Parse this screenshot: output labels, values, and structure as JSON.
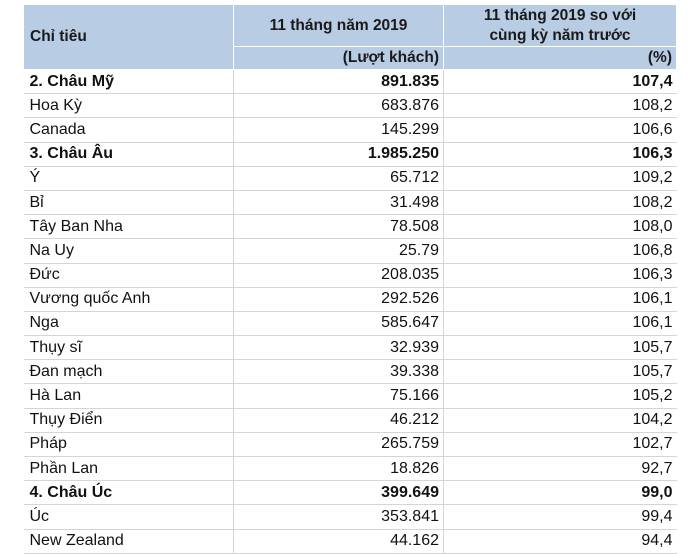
{
  "chart_data": {
    "type": "table",
    "header": {
      "col1": "Chỉ tiêu",
      "col2": "11 tháng năm 2019",
      "col3_line1": "11 tháng 2019 so với",
      "col3_line2": "cùng kỳ năm trước",
      "unit2": "(Lượt khách)",
      "unit3": "(%)"
    },
    "rows": [
      {
        "name": "2. Châu Mỹ",
        "visitors": "891.835",
        "pct": "107,4",
        "bold": true
      },
      {
        "name": "Hoa Kỳ",
        "visitors": "683.876",
        "pct": "108,2"
      },
      {
        "name": "Canada",
        "visitors": "145.299",
        "pct": "106,6"
      },
      {
        "name": "3. Châu Âu",
        "visitors": "1.985.250",
        "pct": "106,3",
        "bold": true
      },
      {
        "name": "Ý",
        "visitors": "65.712",
        "pct": "109,2"
      },
      {
        "name": "Bỉ",
        "visitors": "31.498",
        "pct": "108,2"
      },
      {
        "name": "Tây Ban Nha",
        "visitors": "78.508",
        "pct": "108,0"
      },
      {
        "name": "Na Uy",
        "visitors": "25.79",
        "pct": "106,8"
      },
      {
        "name": "Đức",
        "visitors": "208.035",
        "pct": "106,3"
      },
      {
        "name": "Vương quốc Anh",
        "visitors": "292.526",
        "pct": "106,1"
      },
      {
        "name": "Nga",
        "visitors": "585.647",
        "pct": "106,1"
      },
      {
        "name": "Thụy sĩ",
        "visitors": "32.939",
        "pct": "105,7"
      },
      {
        "name": "Đan mạch",
        "visitors": "39.338",
        "pct": "105,7"
      },
      {
        "name": "Hà Lan",
        "visitors": "75.166",
        "pct": "105,2"
      },
      {
        "name": "Thụy Điển",
        "visitors": "46.212",
        "pct": "104,2"
      },
      {
        "name": "Pháp",
        "visitors": "265.759",
        "pct": "102,7"
      },
      {
        "name": "Phần Lan",
        "visitors": "18.826",
        "pct": "92,7"
      },
      {
        "name": "4. Châu Úc",
        "visitors": "399.649",
        "pct": "99,0",
        "bold": true
      },
      {
        "name": "Úc",
        "visitors": "353.841",
        "pct": "99,4"
      },
      {
        "name": "New Zealand",
        "visitors": "44.162",
        "pct": "94,4"
      }
    ]
  }
}
